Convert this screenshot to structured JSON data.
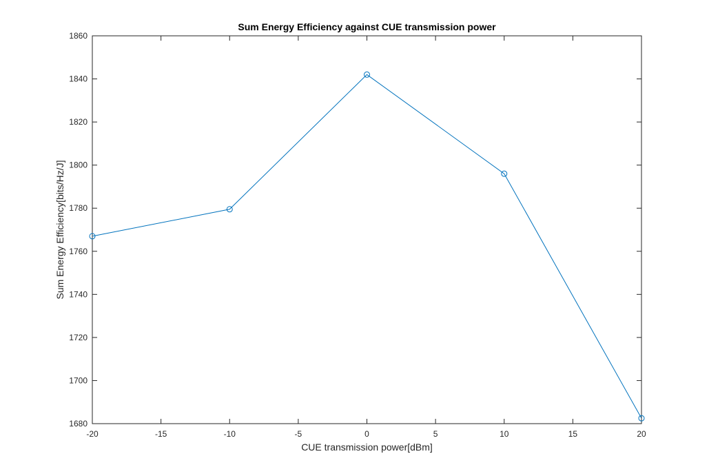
{
  "chart_data": {
    "type": "line",
    "title": "Sum Energy Efficiency against CUE transmission power",
    "xlabel": "CUE transmission power[dBm]",
    "ylabel": "Sum Energy Efficiency[bits/Hz/J]",
    "xlim": [
      -20,
      20
    ],
    "ylim": [
      1680,
      1860
    ],
    "x_ticks": [
      -20,
      -15,
      -10,
      -5,
      0,
      5,
      10,
      15,
      20
    ],
    "y_ticks": [
      1680,
      1700,
      1720,
      1740,
      1760,
      1780,
      1800,
      1820,
      1840,
      1860
    ],
    "grid": false,
    "marker": "circle",
    "series": [
      {
        "x": [
          -20,
          -10,
          0,
          10,
          20
        ],
        "y": [
          1767,
          1779.5,
          1842,
          1796,
          1682.5
        ]
      }
    ],
    "colors": {
      "series": "#0072BD",
      "axis": "#262626",
      "background": "#ffffff"
    }
  }
}
